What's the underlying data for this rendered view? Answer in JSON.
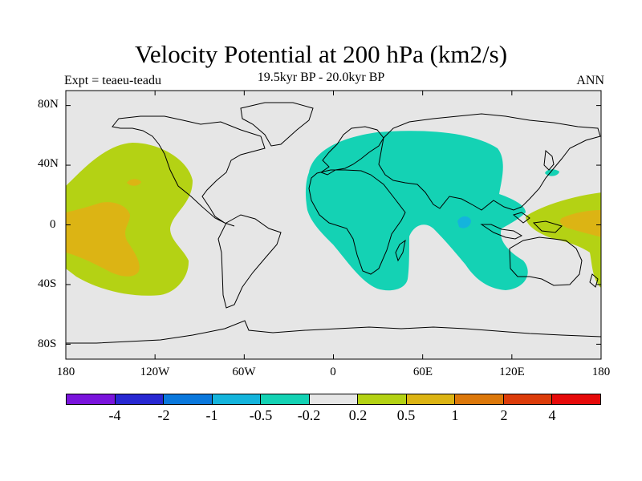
{
  "title": "Velocity Potential at 200 hPa (km2/s)",
  "subtitle": "19.5kyr BP - 20.0kyr BP",
  "expt_label": "Expt = teaeu-teadu",
  "season": "ANN",
  "lat_ticks": [
    "80N",
    "40N",
    "0",
    "40S",
    "80S"
  ],
  "lon_ticks": [
    "180",
    "120W",
    "60W",
    "0",
    "60E",
    "120E",
    "180"
  ],
  "map_bounds": {
    "lon_min": -180,
    "lon_max": 180,
    "lat_min": -90,
    "lat_max": 90
  },
  "colorbar": {
    "colors": [
      "#7a14dc",
      "#2828d2",
      "#0a78dc",
      "#14b4dc",
      "#14d2b4",
      "#e6e6e6",
      "#b4d214",
      "#dcb414",
      "#dc780a",
      "#dc3c0a",
      "#e60a0a"
    ],
    "labels": [
      "-4",
      "-2",
      "-1",
      "-0.5",
      "-0.2",
      "0.2",
      "0.5",
      "1",
      "2",
      "4"
    ]
  },
  "colors": {
    "ocean_background": "#e6e6e6",
    "coast": "#000000"
  }
}
